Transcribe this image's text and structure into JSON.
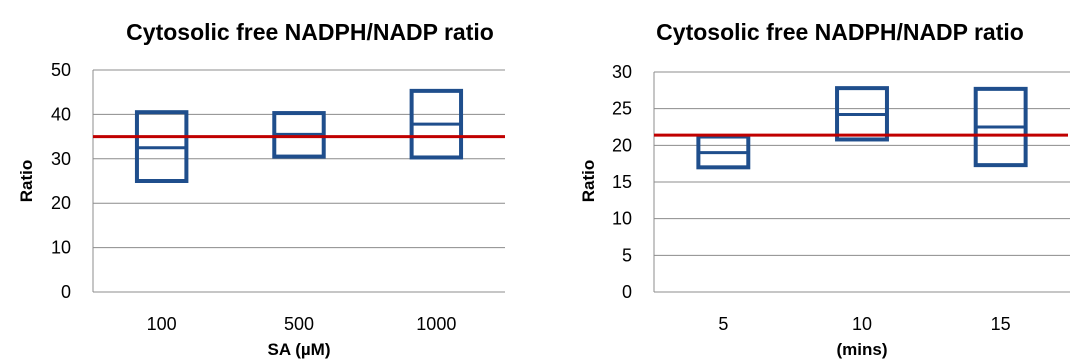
{
  "chart_data": [
    {
      "type": "boxplot",
      "title": "Cytosolic free NADPH/NADP ratio",
      "xlabel": "SA (µM)",
      "ylabel": "Ratio",
      "ylim": [
        0,
        50
      ],
      "yticks": [
        0,
        10,
        20,
        30,
        40,
        50
      ],
      "grid": true,
      "categories": [
        "100",
        "500",
        "1000"
      ],
      "boxes": [
        {
          "low": 25,
          "mid": 32.5,
          "high": 40.5
        },
        {
          "low": 30.5,
          "mid": 35.5,
          "high": 40.3
        },
        {
          "low": 30.3,
          "mid": 37.8,
          "high": 45.3
        }
      ],
      "reference_line": 35,
      "colors": {
        "box": "#1f4e8c",
        "reference": "#c00000",
        "grid": "#8c8c8c"
      }
    },
    {
      "type": "boxplot",
      "title": "Cytosolic free NADPH/NADP ratio",
      "xlabel": "(mins)",
      "ylabel": "Ratio",
      "ylim": [
        0,
        30
      ],
      "yticks": [
        0,
        5,
        10,
        15,
        20,
        25,
        30
      ],
      "grid": true,
      "categories": [
        "5",
        "10",
        "15"
      ],
      "boxes": [
        {
          "low": 17,
          "mid": 19,
          "high": 21.2
        },
        {
          "low": 20.8,
          "mid": 24.2,
          "high": 27.8
        },
        {
          "low": 17.3,
          "mid": 22.5,
          "high": 27.7
        }
      ],
      "reference_line": 21.4,
      "colors": {
        "box": "#1f4e8c",
        "reference": "#c00000",
        "grid": "#8c8c8c"
      }
    }
  ]
}
